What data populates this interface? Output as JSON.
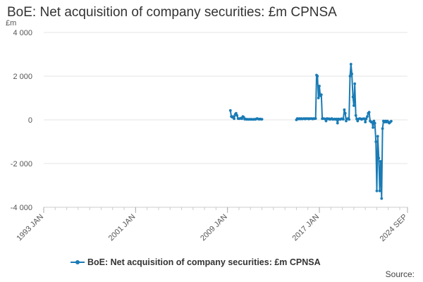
{
  "title": "BoE: Net acquisition of company securities: £m CPNSA",
  "unit": "£m",
  "source_label": "Source:",
  "colors": {
    "series": "#1a7bb5",
    "grid": "#e6e6e6",
    "axis": "#cccccc"
  },
  "chart_data": {
    "type": "line",
    "title": "BoE: Net acquisition of company securities: £m CPNSA",
    "ylabel": "£m",
    "ylim": [
      -4000,
      4000
    ],
    "xlim": [
      1993.0,
      2024.67
    ],
    "y_ticks": [
      {
        "value": 4000,
        "label": "4 000"
      },
      {
        "value": 2000,
        "label": "2 000"
      },
      {
        "value": 0,
        "label": "0"
      },
      {
        "value": -2000,
        "label": "-2 000"
      },
      {
        "value": -4000,
        "label": "-4 000"
      }
    ],
    "x_ticks": [
      {
        "value": 1993.0,
        "label": "1993 JAN"
      },
      {
        "value": 2001.0,
        "label": "2001 JAN"
      },
      {
        "value": 2009.0,
        "label": "2009 JAN"
      },
      {
        "value": 2017.0,
        "label": "2017 JAN"
      },
      {
        "value": 2024.67,
        "label": "2024 SEP"
      }
    ],
    "grid": true,
    "legend": "bottom",
    "series": [
      {
        "name": "BoE: Net acquisition of company securities: £m CPNSA",
        "segments": [
          [
            [
              2009.25,
              430
            ],
            [
              2009.33,
              150
            ],
            [
              2009.42,
              120
            ],
            [
              2009.5,
              150
            ],
            [
              2009.58,
              50
            ],
            [
              2009.67,
              250
            ],
            [
              2009.75,
              300
            ],
            [
              2009.83,
              200
            ],
            [
              2009.92,
              60
            ],
            [
              2010.0,
              50
            ],
            [
              2010.08,
              60
            ],
            [
              2010.17,
              80
            ],
            [
              2010.25,
              50
            ],
            [
              2010.33,
              150
            ],
            [
              2010.42,
              120
            ],
            [
              2010.5,
              30
            ],
            [
              2010.58,
              40
            ],
            [
              2010.67,
              20
            ],
            [
              2010.75,
              30
            ],
            [
              2010.83,
              20
            ],
            [
              2010.92,
              30
            ],
            [
              2011.0,
              20
            ],
            [
              2011.08,
              30
            ],
            [
              2011.17,
              20
            ],
            [
              2011.25,
              20
            ],
            [
              2011.33,
              30
            ],
            [
              2011.42,
              20
            ],
            [
              2011.5,
              40
            ],
            [
              2011.58,
              60
            ],
            [
              2011.67,
              40
            ],
            [
              2011.75,
              30
            ],
            [
              2011.83,
              40
            ],
            [
              2011.92,
              30
            ],
            [
              2012.0,
              30
            ]
          ],
          [
            [
              2015.0,
              0
            ],
            [
              2015.08,
              60
            ],
            [
              2015.17,
              40
            ],
            [
              2015.25,
              60
            ],
            [
              2015.33,
              40
            ],
            [
              2015.42,
              60
            ],
            [
              2015.5,
              40
            ],
            [
              2015.58,
              50
            ],
            [
              2015.67,
              60
            ],
            [
              2015.75,
              40
            ],
            [
              2015.83,
              60
            ],
            [
              2015.92,
              50
            ],
            [
              2016.0,
              60
            ],
            [
              2016.08,
              40
            ],
            [
              2016.17,
              60
            ],
            [
              2016.25,
              50
            ],
            [
              2016.33,
              60
            ],
            [
              2016.42,
              40
            ],
            [
              2016.5,
              60
            ],
            [
              2016.58,
              50
            ],
            [
              2016.67,
              60
            ],
            [
              2016.75,
              2050
            ],
            [
              2016.83,
              2000
            ],
            [
              2016.92,
              1000
            ],
            [
              2017.0,
              1550
            ],
            [
              2017.08,
              1100
            ],
            [
              2017.17,
              1150
            ],
            [
              2017.25,
              50
            ],
            [
              2017.33,
              60
            ],
            [
              2017.42,
              50
            ],
            [
              2017.5,
              40
            ],
            [
              2017.58,
              -50
            ],
            [
              2017.67,
              60
            ],
            [
              2017.75,
              40
            ],
            [
              2017.83,
              50
            ],
            [
              2017.92,
              20
            ],
            [
              2018.0,
              40
            ],
            [
              2018.08,
              60
            ],
            [
              2018.17,
              20
            ],
            [
              2018.25,
              30
            ],
            [
              2018.33,
              40
            ],
            [
              2018.42,
              20
            ],
            [
              2018.5,
              40
            ],
            [
              2018.58,
              -150
            ],
            [
              2018.67,
              40
            ],
            [
              2018.75,
              30
            ],
            [
              2018.83,
              20
            ],
            [
              2018.92,
              50
            ],
            [
              2019.0,
              40
            ],
            [
              2019.08,
              30
            ],
            [
              2019.17,
              460
            ],
            [
              2019.25,
              300
            ],
            [
              2019.33,
              -50
            ],
            [
              2019.42,
              50
            ],
            [
              2019.5,
              60
            ],
            [
              2019.58,
              20
            ],
            [
              2019.67,
              2000
            ],
            [
              2019.75,
              2550
            ],
            [
              2019.83,
              2100
            ],
            [
              2019.92,
              1050
            ],
            [
              2020.0,
              650
            ],
            [
              2020.08,
              1650
            ],
            [
              2020.17,
              200
            ],
            [
              2020.25,
              40
            ],
            [
              2020.33,
              -50
            ],
            [
              2020.42,
              40
            ],
            [
              2020.5,
              60
            ],
            [
              2020.58,
              50
            ],
            [
              2020.67,
              20
            ],
            [
              2020.75,
              40
            ],
            [
              2020.83,
              50
            ],
            [
              2020.92,
              50
            ],
            [
              2021.0,
              -100
            ],
            [
              2021.08,
              50
            ],
            [
              2021.17,
              150
            ],
            [
              2021.25,
              300
            ],
            [
              2021.33,
              350
            ],
            [
              2021.42,
              -50
            ],
            [
              2021.5,
              -100
            ],
            [
              2021.58,
              -100
            ],
            [
              2021.67,
              -350
            ],
            [
              2021.75,
              -50
            ],
            [
              2021.83,
              -150
            ],
            [
              2021.92,
              -1000
            ],
            [
              2022.0,
              -3250
            ],
            [
              2022.08,
              -750
            ],
            [
              2022.17,
              -1750
            ],
            [
              2022.25,
              -3250
            ],
            [
              2022.33,
              -1900
            ],
            [
              2022.42,
              -3600
            ],
            [
              2022.5,
              -400
            ],
            [
              2022.58,
              -50
            ],
            [
              2022.67,
              -100
            ],
            [
              2022.75,
              -50
            ],
            [
              2022.83,
              -100
            ],
            [
              2022.92,
              -50
            ],
            [
              2023.0,
              -100
            ],
            [
              2023.08,
              -150
            ],
            [
              2023.17,
              -100
            ],
            [
              2023.25,
              -60
            ]
          ]
        ]
      }
    ]
  }
}
